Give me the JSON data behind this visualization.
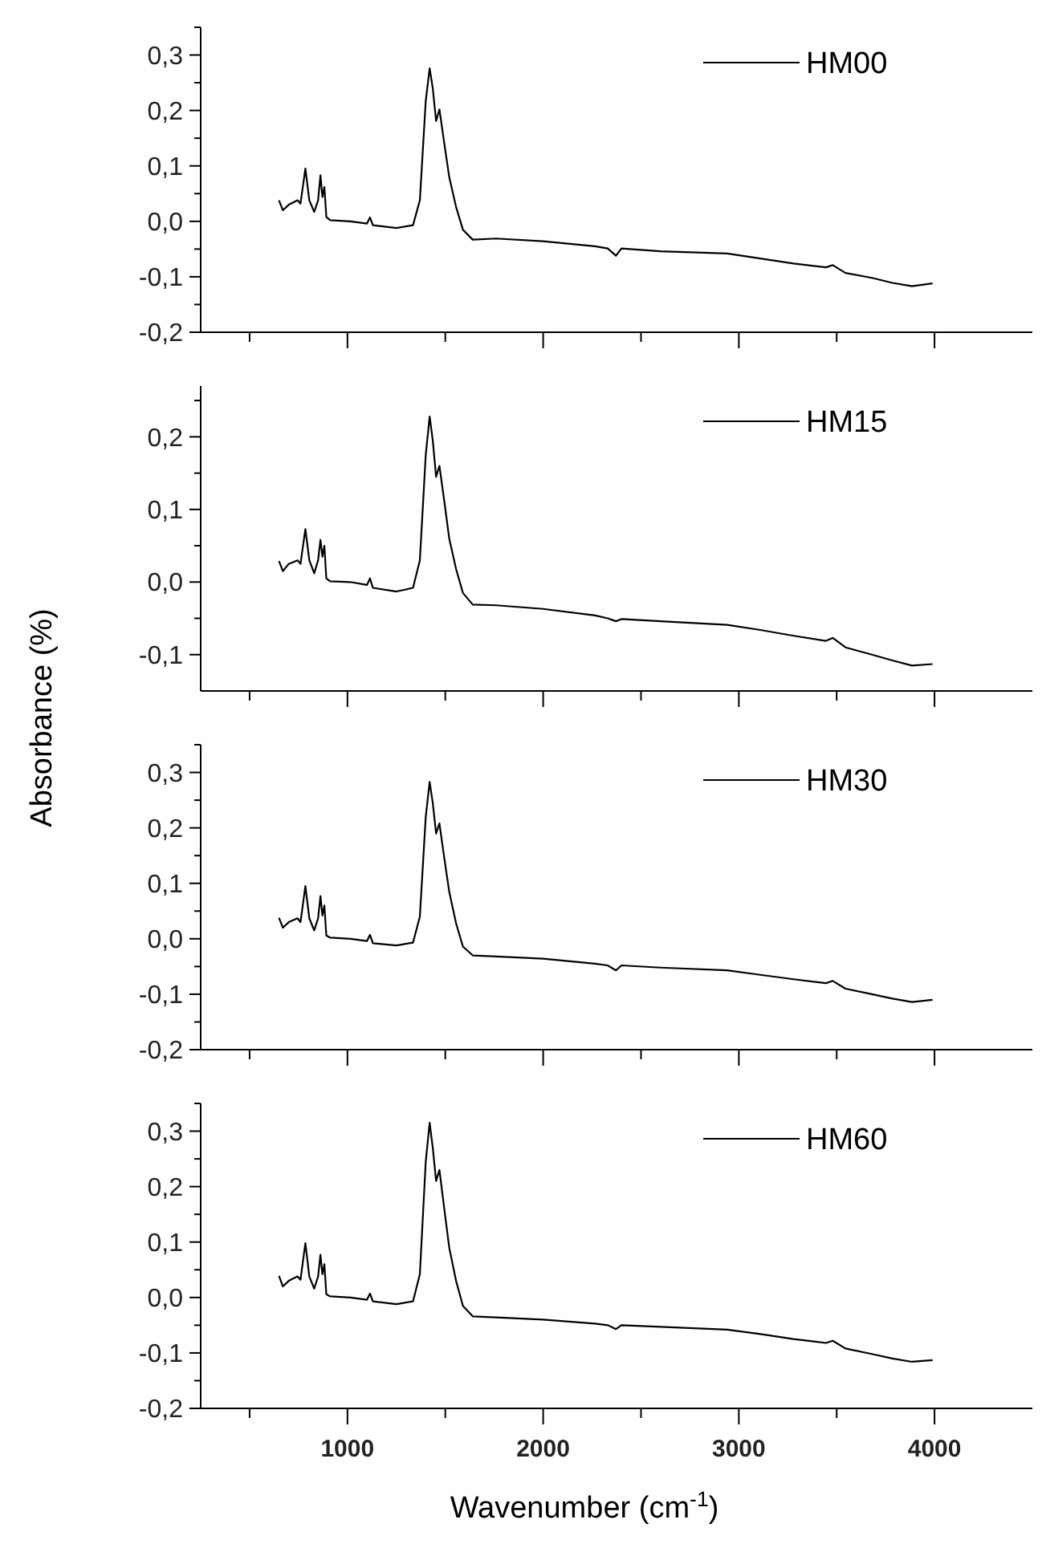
{
  "chart_data": [
    {
      "type": "line",
      "x": [
        650,
        670,
        700,
        745,
        760,
        785,
        805,
        830,
        850,
        862,
        872,
        882,
        892,
        912,
        1015,
        1100,
        1115,
        1130,
        1250,
        1335,
        1370,
        1400,
        1420,
        1436,
        1453,
        1470,
        1493,
        1520,
        1555,
        1590,
        1640,
        1760,
        2000,
        2265,
        2330,
        2372,
        2400,
        2600,
        2940,
        3110,
        3280,
        3445,
        3480,
        3545,
        3680,
        3785,
        3885,
        3990
      ],
      "series": [
        {
          "name": "HM00",
          "color": "#000000",
          "values": [
            0.038,
            0.02,
            0.03,
            0.038,
            0.032,
            0.095,
            0.038,
            0.017,
            0.038,
            0.083,
            0.044,
            0.062,
            0.008,
            0.002,
            0,
            -0.004,
            0.007,
            -0.007,
            -0.012,
            -0.007,
            0.038,
            0.217,
            0.276,
            0.24,
            0.181,
            0.202,
            0.145,
            0.08,
            0.026,
            -0.015,
            -0.033,
            -0.031,
            -0.036,
            -0.045,
            -0.049,
            -0.062,
            -0.049,
            -0.054,
            -0.058,
            -0.067,
            -0.076,
            -0.083,
            -0.079,
            -0.093,
            -0.102,
            -0.111,
            -0.117,
            -0.112
          ]
        }
      ],
      "xlim": [
        250,
        4500
      ],
      "xticks": [
        {
          "value": 500,
          "label": null
        },
        {
          "value": 1000,
          "label": null
        },
        {
          "value": 1500,
          "label": null
        },
        {
          "value": 2000,
          "label": null
        },
        {
          "value": 2500,
          "label": null
        },
        {
          "value": 3000,
          "label": null
        },
        {
          "value": 3500,
          "label": null
        },
        {
          "value": 4000,
          "label": null
        }
      ],
      "ylim": [
        -0.2,
        0.35
      ],
      "yticks": [
        {
          "value": -0.2,
          "label": "-0,2"
        },
        {
          "value": -0.15,
          "label": null
        },
        {
          "value": -0.1,
          "label": "-0,1"
        },
        {
          "value": -0.05,
          "label": null
        },
        {
          "value": 0,
          "label": "0,0"
        },
        {
          "value": 0.05,
          "label": null
        },
        {
          "value": 0.1,
          "label": "0,1"
        },
        {
          "value": 0.15,
          "label": null
        },
        {
          "value": 0.2,
          "label": "0,2"
        },
        {
          "value": 0.25,
          "label": null
        },
        {
          "value": 0.3,
          "label": "0,3"
        },
        {
          "value": 0.35,
          "label": null
        }
      ],
      "tick_labels": "y",
      "legend": "top right",
      "line_style": "solid"
    },
    {
      "type": "line",
      "x": [
        650,
        670,
        700,
        745,
        760,
        785,
        805,
        830,
        850,
        862,
        872,
        882,
        892,
        912,
        1015,
        1100,
        1115,
        1130,
        1250,
        1335,
        1370,
        1400,
        1420,
        1436,
        1453,
        1470,
        1493,
        1520,
        1555,
        1590,
        1640,
        1760,
        2000,
        2265,
        2330,
        2372,
        2400,
        2600,
        2940,
        3110,
        3280,
        3445,
        3480,
        3545,
        3680,
        3785,
        3885,
        3990
      ],
      "series": [
        {
          "name": "HM15",
          "color": "#000000",
          "values": [
            0.029,
            0.015,
            0.025,
            0.03,
            0.025,
            0.073,
            0.03,
            0.012,
            0.03,
            0.058,
            0.035,
            0.05,
            0.005,
            0.001,
            0,
            -0.004,
            0.005,
            -0.008,
            -0.013,
            -0.008,
            0.03,
            0.175,
            0.228,
            0.195,
            0.145,
            0.16,
            0.115,
            0.06,
            0.018,
            -0.015,
            -0.031,
            -0.032,
            -0.037,
            -0.046,
            -0.05,
            -0.054,
            -0.051,
            -0.054,
            -0.059,
            -0.066,
            -0.074,
            -0.081,
            -0.077,
            -0.09,
            -0.1,
            -0.108,
            -0.115,
            -0.113
          ]
        }
      ],
      "xlim": [
        250,
        4500
      ],
      "xticks": [
        {
          "value": 500,
          "label": null
        },
        {
          "value": 1000,
          "label": null
        },
        {
          "value": 1500,
          "label": null
        },
        {
          "value": 2000,
          "label": null
        },
        {
          "value": 2500,
          "label": null
        },
        {
          "value": 3000,
          "label": null
        },
        {
          "value": 3500,
          "label": null
        },
        {
          "value": 4000,
          "label": null
        }
      ],
      "ylim": [
        -0.15,
        0.27
      ],
      "yticks": [
        {
          "value": -0.1,
          "label": "-0,1"
        },
        {
          "value": -0.05,
          "label": null
        },
        {
          "value": 0,
          "label": "0,0"
        },
        {
          "value": 0.05,
          "label": null
        },
        {
          "value": 0.1,
          "label": "0,1"
        },
        {
          "value": 0.15,
          "label": null
        },
        {
          "value": 0.2,
          "label": "0,2"
        },
        {
          "value": 0.25,
          "label": null
        }
      ],
      "ylabel": "Absorbance (%)",
      "tick_labels": "y",
      "legend": "top right",
      "line_style": "solid"
    },
    {
      "type": "line",
      "x": [
        650,
        670,
        700,
        745,
        760,
        785,
        805,
        830,
        850,
        862,
        872,
        882,
        892,
        912,
        1015,
        1100,
        1115,
        1130,
        1250,
        1335,
        1370,
        1400,
        1420,
        1436,
        1453,
        1470,
        1493,
        1520,
        1555,
        1590,
        1640,
        1760,
        2000,
        2265,
        2330,
        2372,
        2400,
        2600,
        2940,
        3110,
        3280,
        3445,
        3480,
        3545,
        3680,
        3785,
        3885,
        3990
      ],
      "series": [
        {
          "name": "HM30",
          "color": "#000000",
          "values": [
            0.038,
            0.02,
            0.03,
            0.037,
            0.03,
            0.095,
            0.037,
            0.015,
            0.037,
            0.077,
            0.042,
            0.06,
            0.006,
            0.002,
            0,
            -0.004,
            0.007,
            -0.008,
            -0.012,
            -0.007,
            0.04,
            0.22,
            0.283,
            0.245,
            0.19,
            0.208,
            0.15,
            0.085,
            0.028,
            -0.014,
            -0.03,
            -0.032,
            -0.036,
            -0.045,
            -0.048,
            -0.057,
            -0.048,
            -0.052,
            -0.057,
            -0.065,
            -0.073,
            -0.08,
            -0.076,
            -0.09,
            -0.1,
            -0.108,
            -0.114,
            -0.11
          ]
        }
      ],
      "xlim": [
        250,
        4500
      ],
      "xticks": [
        {
          "value": 500,
          "label": null
        },
        {
          "value": 1000,
          "label": null
        },
        {
          "value": 1500,
          "label": null
        },
        {
          "value": 2000,
          "label": null
        },
        {
          "value": 2500,
          "label": null
        },
        {
          "value": 3000,
          "label": null
        },
        {
          "value": 3500,
          "label": null
        },
        {
          "value": 4000,
          "label": null
        }
      ],
      "ylim": [
        -0.2,
        0.35
      ],
      "yticks": [
        {
          "value": -0.2,
          "label": "-0,2"
        },
        {
          "value": -0.15,
          "label": null
        },
        {
          "value": -0.1,
          "label": "-0,1"
        },
        {
          "value": -0.05,
          "label": null
        },
        {
          "value": 0,
          "label": "0,0"
        },
        {
          "value": 0.05,
          "label": null
        },
        {
          "value": 0.1,
          "label": "0,1"
        },
        {
          "value": 0.15,
          "label": null
        },
        {
          "value": 0.2,
          "label": "0,2"
        },
        {
          "value": 0.25,
          "label": null
        },
        {
          "value": 0.3,
          "label": "0,3"
        },
        {
          "value": 0.35,
          "label": null
        }
      ],
      "tick_labels": "y",
      "legend": "top right",
      "line_style": "solid"
    },
    {
      "type": "line",
      "x": [
        650,
        670,
        700,
        745,
        760,
        785,
        805,
        830,
        850,
        862,
        872,
        882,
        892,
        912,
        1015,
        1100,
        1115,
        1130,
        1250,
        1335,
        1370,
        1400,
        1420,
        1436,
        1453,
        1470,
        1493,
        1520,
        1555,
        1590,
        1640,
        1760,
        2000,
        2265,
        2330,
        2372,
        2400,
        2600,
        2940,
        3110,
        3280,
        3445,
        3480,
        3545,
        3680,
        3785,
        3885,
        3990
      ],
      "series": [
        {
          "name": "HM60",
          "color": "#000000",
          "values": [
            0.039,
            0.02,
            0.03,
            0.038,
            0.032,
            0.098,
            0.038,
            0.016,
            0.038,
            0.077,
            0.042,
            0.06,
            0.006,
            0.002,
            0,
            -0.004,
            0.007,
            -0.007,
            -0.012,
            -0.007,
            0.042,
            0.245,
            0.315,
            0.27,
            0.21,
            0.23,
            0.165,
            0.09,
            0.03,
            -0.015,
            -0.034,
            -0.036,
            -0.04,
            -0.047,
            -0.05,
            -0.057,
            -0.05,
            -0.053,
            -0.058,
            -0.066,
            -0.075,
            -0.082,
            -0.078,
            -0.092,
            -0.102,
            -0.11,
            -0.116,
            -0.113
          ]
        }
      ],
      "xlim": [
        250,
        4500
      ],
      "xticks": [
        {
          "value": 500,
          "label": null
        },
        1000,
        {
          "value": 1500,
          "label": null
        },
        2000,
        {
          "value": 2500,
          "label": null
        },
        3000,
        {
          "value": 3500,
          "label": null
        },
        4000
      ],
      "ylim": [
        -0.2,
        0.35
      ],
      "yticks": [
        {
          "value": -0.2,
          "label": "-0,2"
        },
        {
          "value": -0.15,
          "label": null
        },
        {
          "value": -0.1,
          "label": "-0,1"
        },
        {
          "value": -0.05,
          "label": null
        },
        {
          "value": 0,
          "label": "0,0"
        },
        {
          "value": 0.05,
          "label": null
        },
        {
          "value": 0.1,
          "label": "0,1"
        },
        {
          "value": 0.15,
          "label": null
        },
        {
          "value": 0.2,
          "label": "0,2"
        },
        {
          "value": 0.25,
          "label": null
        },
        {
          "value": 0.3,
          "label": "0,3"
        },
        {
          "value": 0.35,
          "label": null
        }
      ],
      "xlabel": "Wavenumber (cm$^{-1}$)",
      "legend": "top right",
      "line_style": "solid"
    }
  ]
}
